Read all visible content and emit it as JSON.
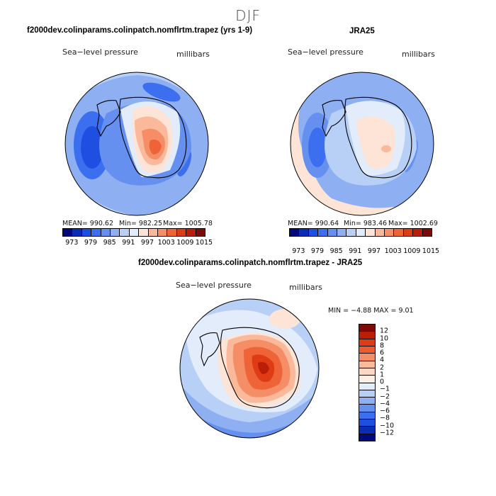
{
  "season": "DJF",
  "panels": {
    "model": {
      "title": "f2000dev.colinparams.colinpatch.nomflrtm.trapez (yrs 1-9)",
      "field": "Sea−level pressure",
      "units": "millibars",
      "mean": "MEAN= 990.62",
      "min": "Min= 982.25",
      "max": "Max= 1005.78"
    },
    "obs": {
      "title": "JRA25",
      "field": "Sea−level pressure",
      "units": "millibars",
      "mean": "MEAN= 990.64",
      "min": "Min= 983.46",
      "max": "Max= 1002.69"
    },
    "diff": {
      "title": "f2000dev.colinparams.colinpatch.nomflrtm.trapez - JRA25",
      "field": "Sea−level pressure",
      "units": "millibars",
      "minmax": "MIN =  −4.88 MAX =    9.01"
    }
  },
  "colorbar_levels": [
    "973",
    "979",
    "985",
    "991",
    "997",
    "1003",
    "1009",
    "1015"
  ],
  "colorbar_colors": [
    "#000a7a",
    "#0a2db4",
    "#1e4fe0",
    "#3c6ff0",
    "#6590f0",
    "#8eb0f2",
    "#b8cff6",
    "#e2ecfb",
    "#fde4d6",
    "#f9b99a",
    "#f58d66",
    "#ee6338",
    "#df3b14",
    "#b91f08",
    "#7e0a05"
  ],
  "diff_levels": [
    "12",
    "10",
    "8",
    "6",
    "4",
    "2",
    "1",
    "0",
    "−1",
    "−2",
    "−4",
    "−6",
    "−8",
    "−10",
    "−12"
  ],
  "diff_colors": [
    "#7e0a05",
    "#b91f08",
    "#df3b14",
    "#ee5a2c",
    "#f58d66",
    "#f9b99a",
    "#fcd7c4",
    "#fdeee4",
    "#e2ecfb",
    "#b8cff6",
    "#8eb0f2",
    "#6590f0",
    "#3c6ff0",
    "#1e4fe0",
    "#0a2db4",
    "#000a7a"
  ]
}
